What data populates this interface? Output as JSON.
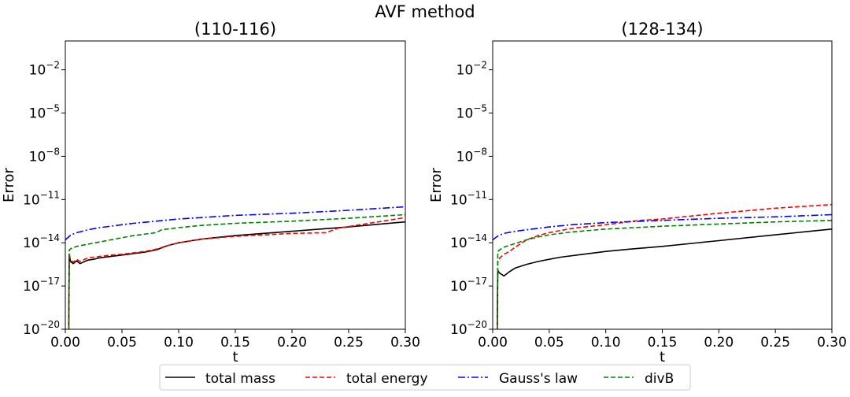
{
  "figure": {
    "title": "AVF method"
  },
  "legend": {
    "entries": [
      {
        "label": "total mass",
        "color": "#000000",
        "dash": "solid"
      },
      {
        "label": "total energy",
        "color": "#ff0000",
        "dash": "dashed"
      },
      {
        "label": "Gauss's law",
        "color": "#0000ff",
        "dash": "dashdot"
      },
      {
        "label": "divB",
        "color": "#008000",
        "dash": "dashed"
      }
    ]
  },
  "chart_data": [
    {
      "type": "line",
      "title": "(110-116)",
      "xlabel": "t",
      "ylabel": "Error",
      "yscale": "log",
      "xlim": [
        0.0,
        0.3
      ],
      "ylim_exp": [
        -20,
        0
      ],
      "xticks": [
        "0.00",
        "0.05",
        "0.10",
        "0.15",
        "0.20",
        "0.25",
        "0.30"
      ],
      "xtick_values": [
        0.0,
        0.05,
        0.1,
        0.15,
        0.2,
        0.25,
        0.3
      ],
      "ytick_exponents": [
        -20,
        -17,
        -14,
        -11,
        -8,
        -5,
        -2
      ],
      "ytick_labels": [
        "10",
        "10",
        "10",
        "10",
        "10",
        "10",
        "10"
      ],
      "ytick_sups": [
        "−20",
        "−17",
        "−14",
        "−11",
        "−8",
        "−5",
        "−2"
      ],
      "series": [
        {
          "name": "total mass",
          "color": "#000000",
          "dash": "solid",
          "x": [
            0.003,
            0.0035,
            0.0045,
            0.007,
            0.01,
            0.013,
            0.017,
            0.02,
            0.025,
            0.03,
            0.04,
            0.05,
            0.06,
            0.07,
            0.08,
            0.09,
            0.1,
            0.12,
            0.15,
            0.2,
            0.25,
            0.3
          ],
          "exp": [
            -20.5,
            -14.8,
            -15.3,
            -15.45,
            -15.25,
            -15.45,
            -15.3,
            -15.2,
            -15.15,
            -15.05,
            -14.95,
            -14.85,
            -14.75,
            -14.65,
            -14.5,
            -14.2,
            -14.0,
            -13.75,
            -13.5,
            -13.2,
            -12.9,
            -12.55
          ]
        },
        {
          "name": "total energy",
          "color": "#ff0000",
          "dash": "dashed",
          "x": [
            0.003,
            0.0035,
            0.0045,
            0.007,
            0.01,
            0.013,
            0.017,
            0.02,
            0.025,
            0.03,
            0.04,
            0.05,
            0.06,
            0.07,
            0.08,
            0.09,
            0.1,
            0.12,
            0.15,
            0.2,
            0.23,
            0.24,
            0.26,
            0.3
          ],
          "exp": [
            -20.5,
            -14.7,
            -15.2,
            -15.35,
            -15.15,
            -15.3,
            -15.15,
            -15.05,
            -15.0,
            -14.95,
            -14.85,
            -14.8,
            -14.7,
            -14.6,
            -14.45,
            -14.2,
            -14.0,
            -13.75,
            -13.55,
            -13.35,
            -13.3,
            -13.0,
            -12.75,
            -12.25
          ]
        },
        {
          "name": "Gauss's law",
          "color": "#0000ff",
          "dash": "dashdot",
          "x": [
            0.0,
            0.005,
            0.01,
            0.02,
            0.03,
            0.04,
            0.05,
            0.06,
            0.08,
            0.1,
            0.12,
            0.15,
            0.2,
            0.25,
            0.3
          ],
          "exp": [
            -13.8,
            -13.45,
            -13.3,
            -13.1,
            -12.95,
            -12.85,
            -12.75,
            -12.65,
            -12.5,
            -12.35,
            -12.25,
            -12.1,
            -11.95,
            -11.75,
            -11.5
          ]
        },
        {
          "name": "divB",
          "color": "#008000",
          "dash": "dashed",
          "x": [
            0.003,
            0.0035,
            0.005,
            0.01,
            0.02,
            0.03,
            0.04,
            0.05,
            0.06,
            0.08,
            0.085,
            0.1,
            0.12,
            0.15,
            0.2,
            0.25,
            0.3
          ],
          "exp": [
            -20.5,
            -14.5,
            -14.4,
            -14.25,
            -14.1,
            -13.95,
            -13.8,
            -13.65,
            -13.5,
            -13.3,
            -13.1,
            -12.95,
            -12.8,
            -12.65,
            -12.5,
            -12.3,
            -12.05
          ]
        }
      ]
    },
    {
      "type": "line",
      "title": "(128-134)",
      "xlabel": "t",
      "ylabel": "Error",
      "yscale": "log",
      "xlim": [
        0.0,
        0.3
      ],
      "ylim_exp": [
        -20,
        0
      ],
      "xticks": [
        "0.00",
        "0.05",
        "0.10",
        "0.15",
        "0.20",
        "0.25",
        "0.30"
      ],
      "xtick_values": [
        0.0,
        0.05,
        0.1,
        0.15,
        0.2,
        0.25,
        0.3
      ],
      "ytick_exponents": [
        -20,
        -17,
        -14,
        -11,
        -8,
        -5,
        -2
      ],
      "ytick_labels": [
        "10",
        "10",
        "10",
        "10",
        "10",
        "10",
        "10"
      ],
      "ytick_sups": [
        "−20",
        "−17",
        "−14",
        "−11",
        "−8",
        "−5",
        "−2"
      ],
      "series": [
        {
          "name": "total mass",
          "color": "#000000",
          "dash": "solid",
          "x": [
            0.004,
            0.0045,
            0.006,
            0.01,
            0.015,
            0.02,
            0.03,
            0.04,
            0.05,
            0.06,
            0.08,
            0.1,
            0.12,
            0.15,
            0.2,
            0.25,
            0.3
          ],
          "exp": [
            -20.5,
            -15.9,
            -16.1,
            -16.3,
            -16.0,
            -15.75,
            -15.5,
            -15.3,
            -15.15,
            -15.0,
            -14.8,
            -14.6,
            -14.45,
            -14.25,
            -13.85,
            -13.45,
            -13.05
          ]
        },
        {
          "name": "total energy",
          "color": "#ff0000",
          "dash": "dashed",
          "x": [
            0.004,
            0.0045,
            0.007,
            0.01,
            0.015,
            0.02,
            0.03,
            0.04,
            0.05,
            0.07,
            0.1,
            0.13,
            0.15,
            0.2,
            0.25,
            0.3
          ],
          "exp": [
            -20.5,
            -15.2,
            -15.0,
            -14.8,
            -14.6,
            -14.3,
            -13.8,
            -13.5,
            -13.3,
            -13.0,
            -12.75,
            -12.45,
            -12.35,
            -11.95,
            -11.6,
            -11.35
          ]
        },
        {
          "name": "Gauss's law",
          "color": "#0000ff",
          "dash": "dashdot",
          "x": [
            0.0,
            0.005,
            0.01,
            0.02,
            0.03,
            0.04,
            0.05,
            0.07,
            0.09,
            0.1,
            0.15,
            0.2,
            0.25,
            0.3
          ],
          "exp": [
            -13.8,
            -13.5,
            -13.35,
            -13.2,
            -13.1,
            -13.0,
            -12.9,
            -12.75,
            -12.65,
            -12.6,
            -12.45,
            -12.3,
            -12.2,
            -12.05
          ]
        },
        {
          "name": "divB",
          "color": "#008000",
          "dash": "dashed",
          "x": [
            0.004,
            0.0045,
            0.006,
            0.01,
            0.02,
            0.03,
            0.04,
            0.05,
            0.07,
            0.1,
            0.15,
            0.2,
            0.25,
            0.3
          ],
          "exp": [
            -20.5,
            -14.6,
            -14.5,
            -14.3,
            -14.05,
            -13.8,
            -13.6,
            -13.45,
            -13.25,
            -13.05,
            -12.85,
            -12.7,
            -12.55,
            -12.45
          ]
        }
      ]
    }
  ]
}
